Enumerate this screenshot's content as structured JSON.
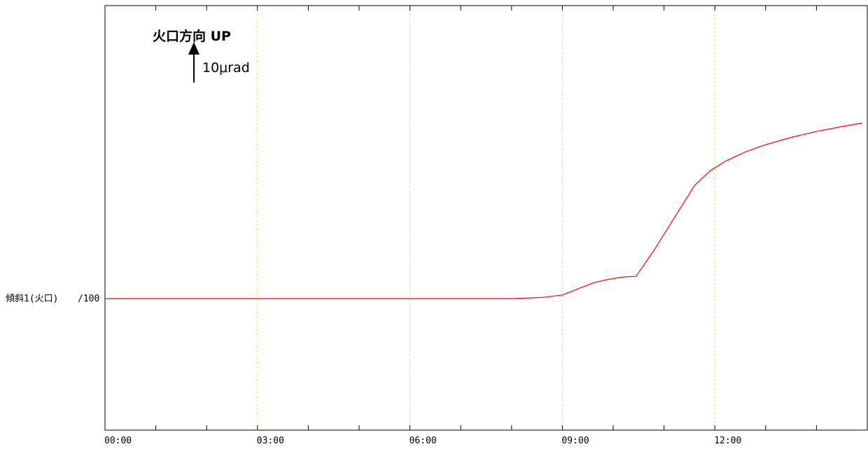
{
  "chart_data": {
    "type": "line",
    "title": "",
    "xlabel": "",
    "ylabel": "",
    "x_ticks": [
      "00:00",
      "03:00",
      "06:00",
      "09:00",
      "12:00"
    ],
    "x_range_hours": [
      0,
      15
    ],
    "grid_vertical_at_hours": [
      3,
      6,
      9,
      12
    ],
    "grid": true,
    "series": [
      {
        "name": "傾斜1(火口)",
        "scale_label": "/100",
        "color": "#ff0000",
        "unit": "μrad",
        "points": [
          [
            0.0,
            0.0
          ],
          [
            1.0,
            0.0
          ],
          [
            2.0,
            0.0
          ],
          [
            3.0,
            0.0
          ],
          [
            4.0,
            0.0
          ],
          [
            5.0,
            0.0
          ],
          [
            6.0,
            0.0
          ],
          [
            7.0,
            0.0
          ],
          [
            8.0,
            0.0
          ],
          [
            8.6,
            0.1
          ],
          [
            9.0,
            0.3
          ],
          [
            9.3,
            0.8
          ],
          [
            9.6,
            1.3
          ],
          [
            9.9,
            1.6
          ],
          [
            10.2,
            1.8
          ],
          [
            10.45,
            1.85
          ],
          [
            10.8,
            4.0
          ],
          [
            11.2,
            6.7
          ],
          [
            11.6,
            9.4
          ],
          [
            11.9,
            10.6
          ],
          [
            12.2,
            11.4
          ],
          [
            12.6,
            12.2
          ],
          [
            13.0,
            12.8
          ],
          [
            13.5,
            13.4
          ],
          [
            14.0,
            13.9
          ],
          [
            14.5,
            14.3
          ],
          [
            14.9,
            14.6
          ]
        ]
      }
    ],
    "scale_bar": {
      "label": "10μrad",
      "value": 10
    },
    "annotation": "火口方向 UP"
  }
}
